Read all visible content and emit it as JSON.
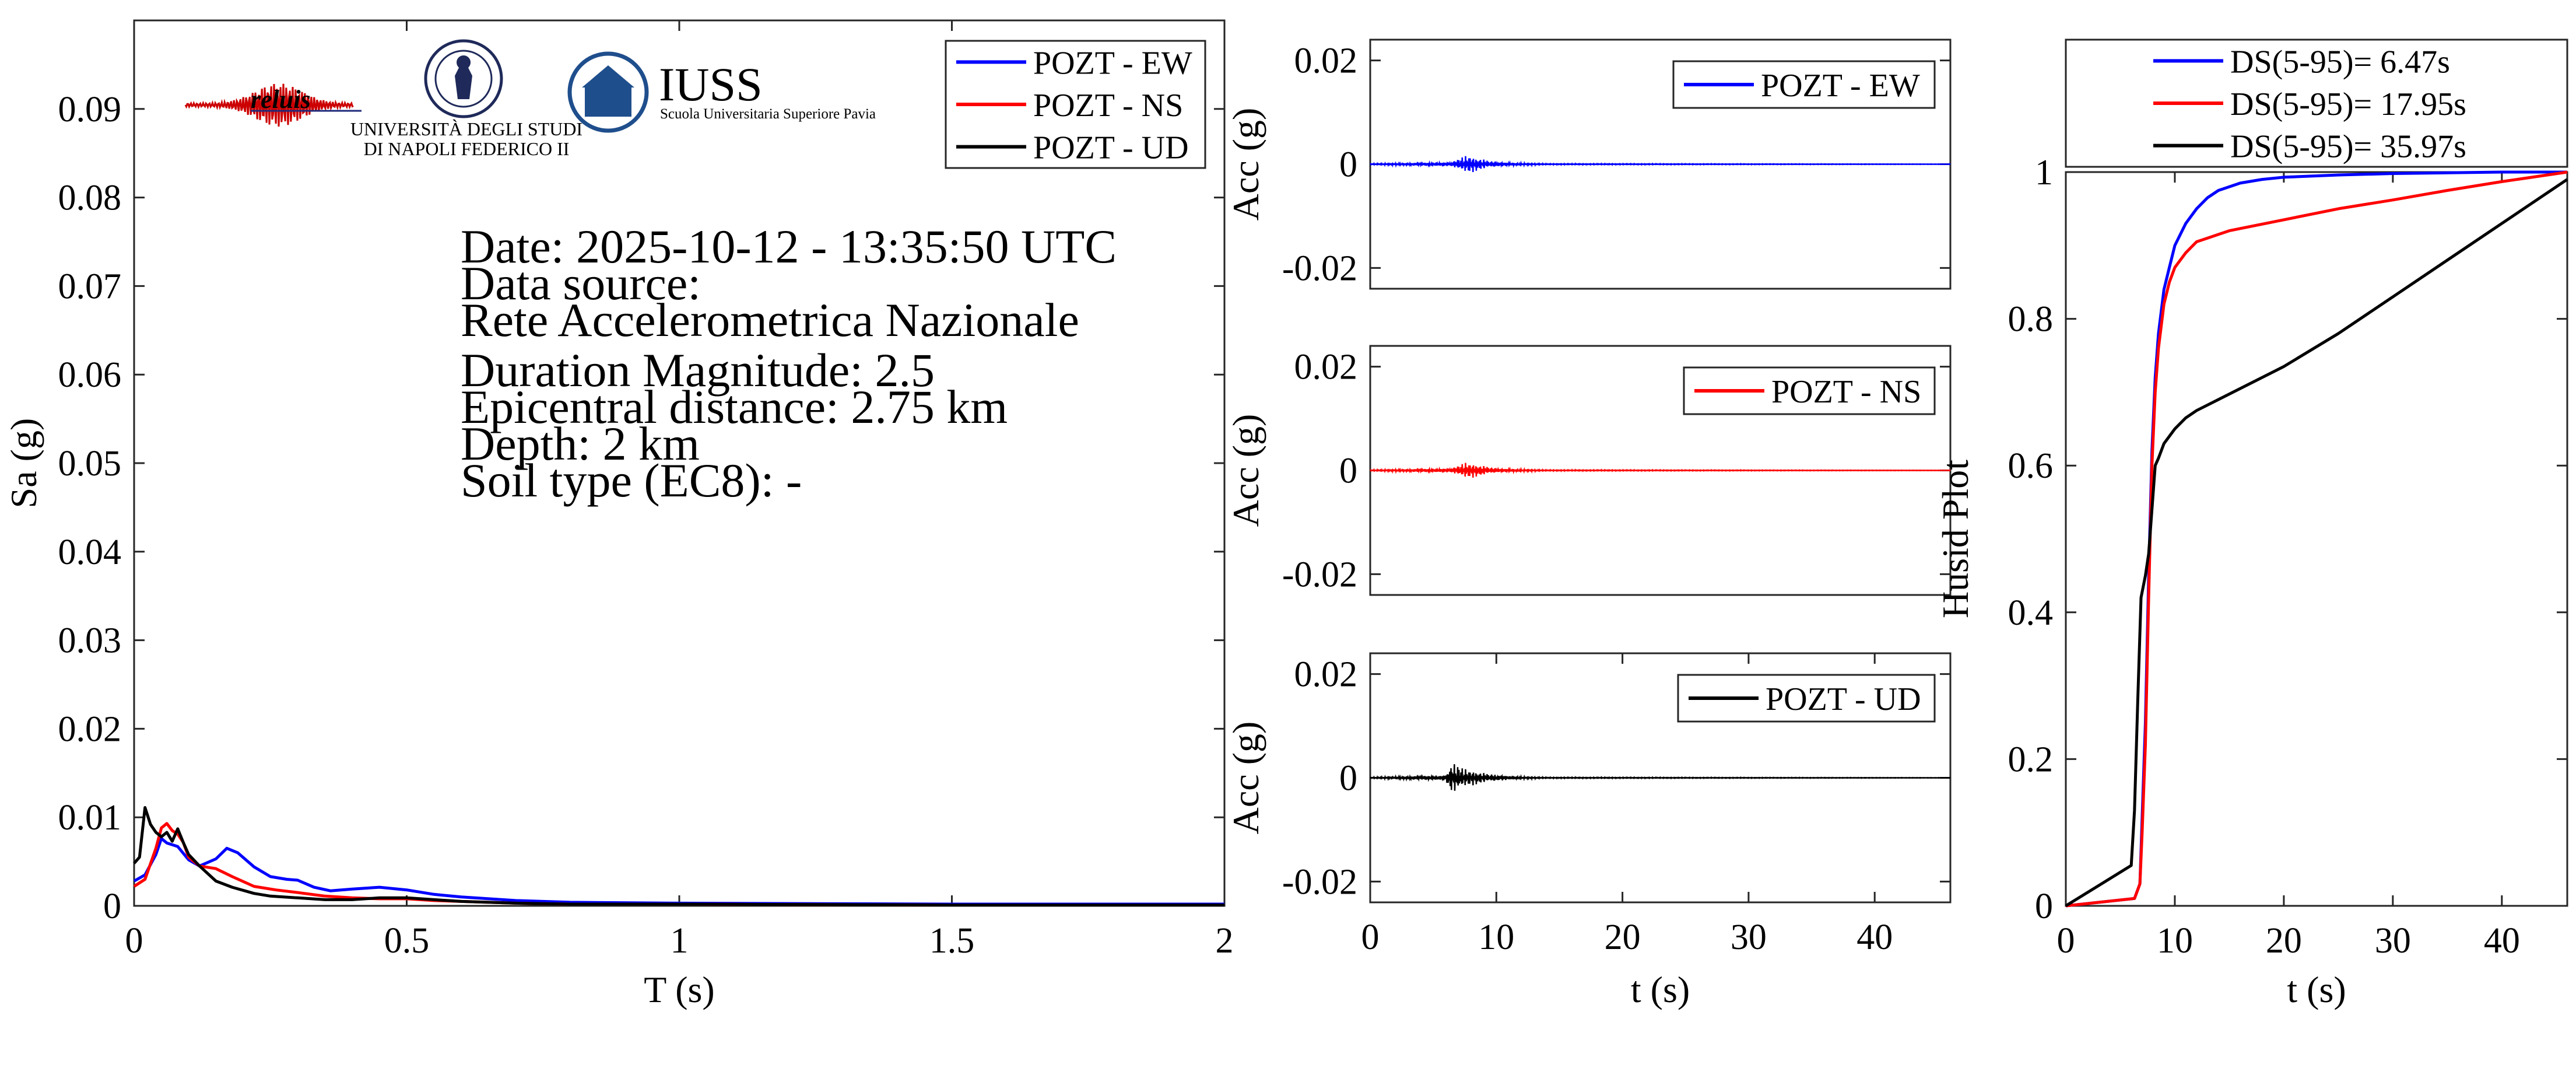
{
  "logos": {
    "reluis": {
      "text": "reluis",
      "color": "#1f2a7a"
    },
    "unina": {
      "line1": "UNIVERSITÀ DEGLI STUDI",
      "line2": "DI NAPOLI FEDERICO II"
    },
    "iuss": {
      "text": "IUSS",
      "subtitle": "Scuola Universitaria Superiore Pavia",
      "color": "#1f4e8c"
    }
  },
  "info": {
    "lines": [
      "Date: 2025-10-12 - 13:35:50 UTC",
      "Data source:",
      "Rete Accelerometrica Nazionale",
      "Duration Magnitude: 2.5",
      "Epicentral distance: 2.75 km",
      "Depth: 2 km",
      "Soil type (EC8): -"
    ]
  },
  "colors": {
    "EW": "#0000ff",
    "NS": "#ff0000",
    "UD": "#000000"
  },
  "chart_data": [
    {
      "id": "spectrum",
      "type": "line",
      "xlabel": "T (s)",
      "ylabel": "Sa (g)",
      "xlim": [
        0,
        2
      ],
      "ylim": [
        0,
        0.1
      ],
      "xticks": [
        0,
        0.5,
        1,
        1.5,
        2
      ],
      "xtick_labels": [
        "0",
        "0.5",
        "1",
        "1.5",
        "2"
      ],
      "yticks": [
        0,
        0.01,
        0.02,
        0.03,
        0.04,
        0.05,
        0.06,
        0.07,
        0.08,
        0.09
      ],
      "ytick_labels": [
        "0",
        "0.01",
        "0.02",
        "0.03",
        "0.04",
        "0.05",
        "0.06",
        "0.07",
        "0.08",
        "0.09"
      ],
      "legend_position": "top-right",
      "series": [
        {
          "name": "POZT - EW",
          "color": "#0000ff",
          "x": [
            0,
            0.02,
            0.04,
            0.05,
            0.06,
            0.08,
            0.1,
            0.12,
            0.15,
            0.17,
            0.19,
            0.22,
            0.25,
            0.28,
            0.3,
            0.33,
            0.36,
            0.4,
            0.45,
            0.5,
            0.55,
            0.6,
            0.7,
            0.8,
            1.0,
            1.5,
            2.0
          ],
          "y": [
            0.0028,
            0.0035,
            0.0058,
            0.0076,
            0.0071,
            0.0067,
            0.0052,
            0.0045,
            0.0053,
            0.0065,
            0.006,
            0.0044,
            0.0033,
            0.003,
            0.0029,
            0.0021,
            0.0017,
            0.0019,
            0.0021,
            0.0018,
            0.0013,
            0.001,
            0.0006,
            0.0004,
            0.0003,
            0.0002,
            0.0002
          ]
        },
        {
          "name": "POZT - NS",
          "color": "#ff0000",
          "x": [
            0,
            0.02,
            0.04,
            0.05,
            0.06,
            0.07,
            0.08,
            0.09,
            0.1,
            0.12,
            0.15,
            0.18,
            0.22,
            0.26,
            0.3,
            0.35,
            0.4,
            0.45,
            0.5,
            0.55,
            0.6,
            0.7,
            0.8,
            1.0,
            1.5,
            2.0
          ],
          "y": [
            0.0022,
            0.003,
            0.0065,
            0.0088,
            0.0093,
            0.0085,
            0.0081,
            0.0072,
            0.0055,
            0.0045,
            0.0042,
            0.0033,
            0.0022,
            0.0018,
            0.0015,
            0.0011,
            0.0009,
            0.0008,
            0.0008,
            0.0006,
            0.0005,
            0.0003,
            0.0002,
            0.0002,
            0.0001,
            0.0001
          ]
        },
        {
          "name": "POZT - UD",
          "color": "#000000",
          "x": [
            0,
            0.01,
            0.02,
            0.03,
            0.04,
            0.05,
            0.06,
            0.07,
            0.08,
            0.09,
            0.1,
            0.12,
            0.15,
            0.18,
            0.22,
            0.25,
            0.3,
            0.35,
            0.4,
            0.45,
            0.5,
            0.6,
            0.7,
            0.8,
            1.0,
            1.5,
            2.0
          ],
          "y": [
            0.0048,
            0.0055,
            0.0111,
            0.0092,
            0.0083,
            0.0078,
            0.0083,
            0.0073,
            0.0087,
            0.0072,
            0.0058,
            0.0045,
            0.0028,
            0.0021,
            0.0014,
            0.0011,
            0.0009,
            0.0007,
            0.0007,
            0.0009,
            0.0009,
            0.0005,
            0.0003,
            0.0002,
            0.0002,
            0.0001,
            0.0001
          ]
        }
      ]
    },
    {
      "id": "acc-ew",
      "type": "line",
      "xlabel": "",
      "ylabel": "Acc (g)",
      "xlim": [
        0,
        46
      ],
      "ylim": [
        -0.024,
        0.024
      ],
      "yticks": [
        -0.02,
        0,
        0.02
      ],
      "ytick_labels": [
        "-0.02",
        "0",
        "0.02"
      ],
      "legend_position": "top-right",
      "series": [
        {
          "name": "POZT - EW",
          "color": "#0000ff",
          "x": [
            0,
            6.5,
            7.0,
            7.3,
            7.6,
            7.9,
            8.2,
            8.5,
            8.8,
            9.2,
            9.6,
            10.0,
            11.0,
            12.0,
            14.0,
            46.0
          ],
          "amplitude": [
            0.0001,
            0.0004,
            0.0011,
            0.0014,
            0.0017,
            0.0018,
            0.0015,
            0.0013,
            0.0011,
            0.0008,
            0.0006,
            0.0005,
            0.0003,
            0.0002,
            0.0001,
            3e-05
          ]
        }
      ]
    },
    {
      "id": "acc-ns",
      "type": "line",
      "xlabel": "",
      "ylabel": "Acc (g)",
      "xlim": [
        0,
        46
      ],
      "ylim": [
        -0.024,
        0.024
      ],
      "yticks": [
        -0.02,
        0,
        0.02
      ],
      "ytick_labels": [
        "-0.02",
        "0",
        "0.02"
      ],
      "legend_position": "top-right",
      "series": [
        {
          "name": "POZT - NS",
          "color": "#ff0000",
          "x": [
            0,
            6.5,
            7.0,
            7.3,
            7.6,
            7.9,
            8.2,
            8.5,
            8.8,
            9.2,
            9.6,
            10.0,
            11.0,
            12.0,
            14.0,
            46.0
          ],
          "amplitude": [
            0.0001,
            0.0004,
            0.001,
            0.0013,
            0.0016,
            0.0015,
            0.0014,
            0.0012,
            0.001,
            0.0008,
            0.0006,
            0.0004,
            0.0003,
            0.0002,
            0.0001,
            3e-05
          ]
        }
      ]
    },
    {
      "id": "acc-ud",
      "type": "line",
      "xlabel": "t (s)",
      "ylabel": "Acc (g)",
      "xlim": [
        0,
        46
      ],
      "ylim": [
        -0.024,
        0.024
      ],
      "xticks": [
        0,
        10,
        20,
        30,
        40
      ],
      "xtick_labels": [
        "0",
        "10",
        "20",
        "30",
        "40"
      ],
      "yticks": [
        -0.02,
        0,
        0.02
      ],
      "ytick_labels": [
        "-0.02",
        "0",
        "0.02"
      ],
      "legend_position": "top-right",
      "series": [
        {
          "name": "POZT - UD",
          "color": "#000000",
          "x": [
            0,
            6.0,
            6.3,
            6.6,
            6.9,
            7.2,
            7.5,
            7.9,
            8.3,
            8.8,
            9.3,
            10.0,
            11.0,
            12.0,
            14.0,
            46.0
          ],
          "amplitude": [
            0.0001,
            0.0005,
            0.0026,
            0.003,
            0.0026,
            0.002,
            0.0018,
            0.0016,
            0.0014,
            0.0011,
            0.0008,
            0.0006,
            0.0004,
            0.0002,
            0.0001,
            3e-05
          ]
        }
      ]
    },
    {
      "id": "husid",
      "type": "line",
      "xlabel": "t (s)",
      "ylabel": "Husid Plot",
      "xlim": [
        0,
        46
      ],
      "ylim": [
        0,
        1
      ],
      "xticks": [
        0,
        10,
        20,
        30,
        40
      ],
      "xtick_labels": [
        "0",
        "10",
        "20",
        "30",
        "40"
      ],
      "yticks": [
        0,
        0.2,
        0.4,
        0.6,
        0.8,
        1
      ],
      "ytick_labels": [
        "0",
        "0.2",
        "0.4",
        "0.6",
        "0.8",
        "1"
      ],
      "legend_position": "top",
      "series": [
        {
          "name": "DS(5-95)= 6.47s",
          "color": "#0000ff",
          "x": [
            0,
            6.3,
            6.8,
            7.0,
            7.3,
            7.6,
            7.9,
            8.2,
            8.5,
            9.0,
            9.5,
            10.0,
            11.0,
            12.0,
            13.0,
            14.0,
            16.0,
            18.0,
            20.0,
            25.0,
            30.0,
            35.0,
            40.0,
            46.0
          ],
          "y": [
            0,
            0.01,
            0.03,
            0.12,
            0.25,
            0.45,
            0.62,
            0.72,
            0.78,
            0.84,
            0.87,
            0.9,
            0.93,
            0.95,
            0.965,
            0.975,
            0.985,
            0.99,
            0.993,
            0.996,
            0.998,
            0.999,
            1.0,
            1.0
          ]
        },
        {
          "name": "DS(5-95)= 17.95s",
          "color": "#ff0000",
          "x": [
            0,
            6.3,
            6.8,
            7.0,
            7.3,
            7.6,
            7.9,
            8.2,
            8.5,
            9.0,
            9.5,
            10.0,
            11.0,
            12.0,
            13.0,
            15.0,
            20.0,
            25.0,
            30.0,
            35.0,
            40.0,
            46.0
          ],
          "y": [
            0,
            0.01,
            0.03,
            0.1,
            0.22,
            0.42,
            0.6,
            0.7,
            0.76,
            0.82,
            0.85,
            0.87,
            0.89,
            0.905,
            0.91,
            0.92,
            0.935,
            0.95,
            0.962,
            0.975,
            0.987,
            1.0
          ]
        },
        {
          "name": "DS(5-95)= 35.97s",
          "color": "#000000",
          "x": [
            0,
            6.0,
            6.3,
            6.6,
            6.9,
            7.3,
            7.6,
            7.9,
            8.2,
            8.5,
            9.0,
            10.0,
            11.0,
            12.0,
            14.0,
            16.0,
            20.0,
            25.0,
            30.0,
            35.0,
            40.0,
            46.0
          ],
          "y": [
            0,
            0.055,
            0.13,
            0.28,
            0.42,
            0.45,
            0.48,
            0.54,
            0.6,
            0.61,
            0.63,
            0.65,
            0.665,
            0.675,
            0.69,
            0.705,
            0.735,
            0.78,
            0.83,
            0.88,
            0.93,
            0.99
          ]
        }
      ]
    }
  ]
}
